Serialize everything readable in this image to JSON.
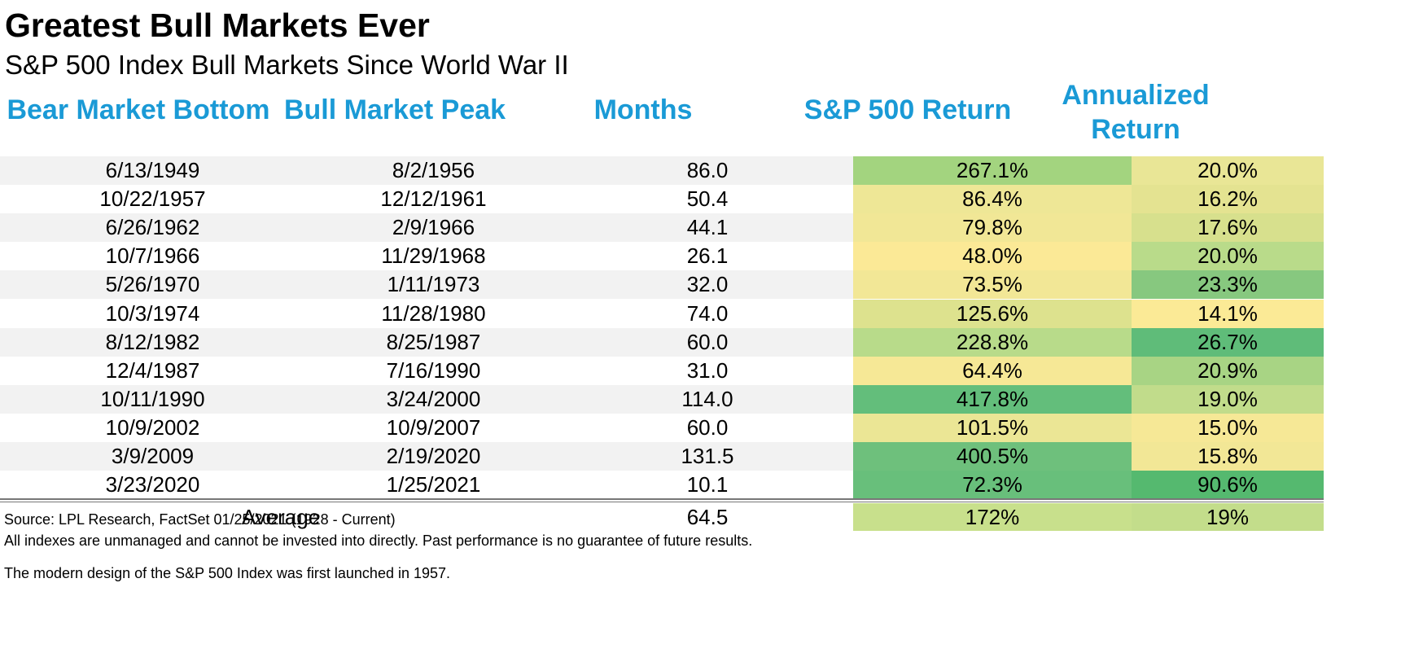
{
  "title": "Greatest Bull Markets Ever",
  "subtitle": "S&P 500 Index Bull Markets Since World War II",
  "chart_data": {
    "type": "table",
    "columns": [
      "Bear Market Bottom",
      "Bull Market Peak",
      "Months",
      "S&P 500 Return",
      "Annualized Return"
    ],
    "column_lines": [
      [
        "Bear Market Bottom"
      ],
      [
        "Bull Market Peak"
      ],
      [
        "Months"
      ],
      [
        "S&P 500 Return"
      ],
      [
        "Annualized",
        "Return"
      ]
    ],
    "rows": [
      {
        "bottom": "6/13/1949",
        "peak": "8/2/1956",
        "months": "86.0",
        "ret": "267.1%",
        "ann": "20.0%",
        "ret_v": 267.1,
        "ann_v": 20.0
      },
      {
        "bottom": "10/22/1957",
        "peak": "12/12/1961",
        "months": "50.4",
        "ret": "86.4%",
        "ann": "16.2%",
        "ret_v": 86.4,
        "ann_v": 16.2
      },
      {
        "bottom": "6/26/1962",
        "peak": "2/9/1966",
        "months": "44.1",
        "ret": "79.8%",
        "ann": "17.6%",
        "ret_v": 79.8,
        "ann_v": 17.6
      },
      {
        "bottom": "10/7/1966",
        "peak": "11/29/1968",
        "months": "26.1",
        "ret": "48.0%",
        "ann": "20.0%",
        "ret_v": 48.0,
        "ann_v": 20.0
      },
      {
        "bottom": "5/26/1970",
        "peak": "1/11/1973",
        "months": "32.0",
        "ret": "73.5%",
        "ann": "23.3%",
        "ret_v": 73.5,
        "ann_v": 23.3
      },
      {
        "bottom": "10/3/1974",
        "peak": "11/28/1980",
        "months": "74.0",
        "ret": "125.6%",
        "ann": "14.1%",
        "ret_v": 125.6,
        "ann_v": 14.1
      },
      {
        "bottom": "8/12/1982",
        "peak": "8/25/1987",
        "months": "60.0",
        "ret": "228.8%",
        "ann": "26.7%",
        "ret_v": 228.8,
        "ann_v": 26.7
      },
      {
        "bottom": "12/4/1987",
        "peak": "7/16/1990",
        "months": "31.0",
        "ret": "64.4%",
        "ann": "20.9%",
        "ret_v": 64.4,
        "ann_v": 20.9
      },
      {
        "bottom": "10/11/1990",
        "peak": "3/24/2000",
        "months": "114.0",
        "ret": "417.8%",
        "ann": "19.0%",
        "ret_v": 417.8,
        "ann_v": 19.0
      },
      {
        "bottom": "10/9/2002",
        "peak": "10/9/2007",
        "months": "60.0",
        "ret": "101.5%",
        "ann": "15.0%",
        "ret_v": 101.5,
        "ann_v": 15.0
      },
      {
        "bottom": "3/9/2009",
        "peak": "2/19/2020",
        "months": "131.5",
        "ret": "400.5%",
        "ann": "15.8%",
        "ret_v": 400.5,
        "ann_v": 15.8
      },
      {
        "bottom": "3/23/2020",
        "peak": "1/25/2021",
        "months": "10.1",
        "ret": "72.3%",
        "ann": "90.6%",
        "ret_v": 72.3,
        "ann_v": 90.6
      }
    ],
    "average": {
      "label": "Average",
      "months": "64.5",
      "ret": "172%",
      "ann": "19%"
    },
    "heatmap_colors": {
      "low": "#fbea96",
      "mid": "#bcdb8a",
      "high": "#63be7b"
    },
    "cell_colors": {
      "ret": [
        "#a3d47f",
        "#eee796",
        "#f1e796",
        "#fbe996",
        "#f2e796",
        "#dde28e",
        "#b8db8a",
        "#f6e896",
        "#63be7b",
        "#ebe695",
        "#6ec07c",
        "#68bf7b"
      ],
      "ann": [
        "#e9e696",
        "#e4e391",
        "#d7e08d",
        "#b9db8a",
        "#87c87f",
        "#fbea96",
        "#5fbc79",
        "#a8d484",
        "#c1dc8b",
        "#f6e896",
        "#f2e796",
        "#55b96f"
      ],
      "avg_ret": "#c8e08c",
      "avg_ann": "#c3dd8b"
    }
  },
  "footnotes": [
    "Source: LPL Research, FactSet 01/25/2021 (1928 - Current)",
    "All indexes are unmanaged and cannot be invested into directly. Past performance is no guarantee of future results.",
    "The modern design of the S&P 500 Index was first launched in 1957."
  ]
}
